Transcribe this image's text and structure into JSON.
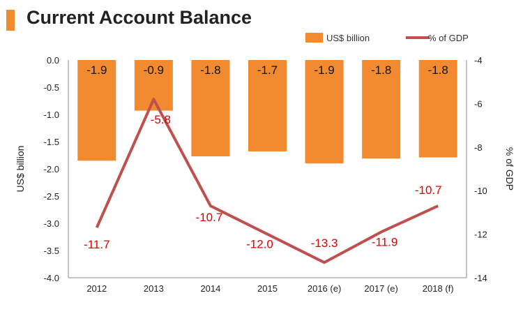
{
  "header": {
    "title": "Current Account Balance"
  },
  "colors": {
    "accent": "#f28a30",
    "bar": "#f28a30",
    "line": "#c0504d",
    "line_label": "#e00000",
    "axis": "#888888"
  },
  "chart_data": {
    "type": "bar",
    "categories": [
      "2012",
      "2013",
      "2014",
      "2015",
      "2016 (e)",
      "2017 (e)",
      "2018 (f)"
    ],
    "series": [
      {
        "name": "US$ billion",
        "type": "bar",
        "axis": "left",
        "values": [
          -1.85,
          -0.93,
          -1.77,
          -1.68,
          -1.9,
          -1.81,
          -1.79
        ],
        "labels": [
          "-1.9",
          "-0.9",
          "-1.8",
          "-1.7",
          "-1.9",
          "-1.8",
          "-1.8"
        ]
      },
      {
        "name": "% of GDP",
        "type": "line",
        "axis": "right",
        "values": [
          -11.7,
          -5.8,
          -10.7,
          -12.0,
          -13.3,
          -11.9,
          -10.7
        ],
        "labels": [
          "-11.7",
          "-5.8",
          "-10.7",
          "-12.0",
          "-13.3",
          "-11.9",
          "-10.7"
        ]
      }
    ],
    "ylabel": "US$ billion",
    "y2label": "% of GDP",
    "ylim": [
      -4.0,
      0.0
    ],
    "y2lim": [
      -14,
      -4
    ],
    "yticks": [
      "0.0",
      "-0.5",
      "-1.0",
      "-1.5",
      "-2.0",
      "-2.5",
      "-3.0",
      "-3.5",
      "-4.0"
    ],
    "y2ticks": [
      "-4",
      "-6",
      "-8",
      "-10",
      "-12",
      "-14"
    ],
    "grid": false,
    "legend_position": "top-right"
  }
}
